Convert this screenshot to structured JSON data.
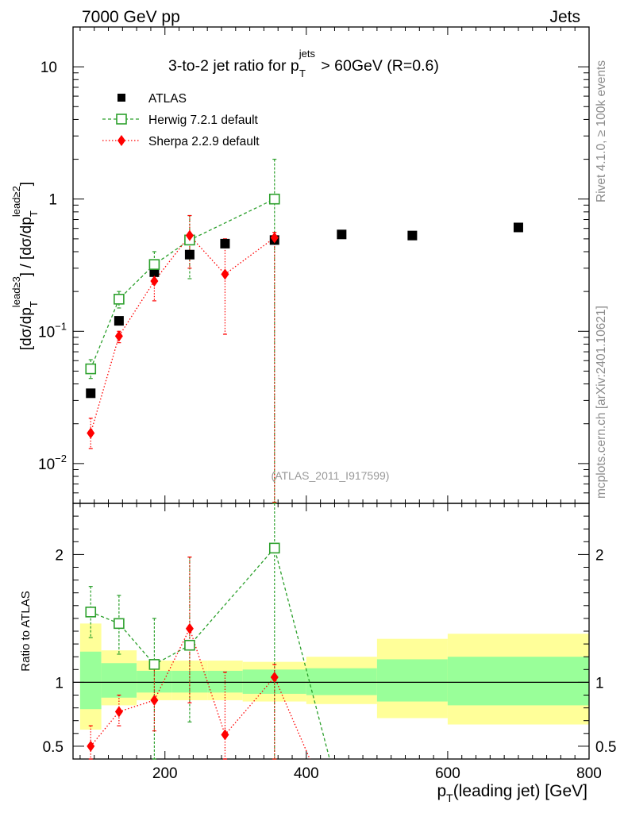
{
  "header": {
    "left": "7000 GeV pp",
    "right": "Jets",
    "side_top": "Rivet 4.1.0, ≥ 100k events",
    "side_bottom": "mcplots.cern.ch [arXiv:2401.10621]",
    "ref": "(ATLAS_2011_I917599)"
  },
  "main_title": {
    "prefix": "3-to-2 jet ratio for p",
    "sup": "jets",
    "sub": "T",
    "suffix": " > 60GeV (R=0.6)"
  },
  "axes": {
    "main_ylabel": "[dσ/dp_T^{lead≥3}] / [dσ/dp_T^{lead≥2}]",
    "main_ylabel_parts": [
      "[dσ/dp",
      "T",
      "lead≥3",
      "] / [dσ/dp",
      "T",
      "lead≥2",
      "]"
    ],
    "ratio_ylabel": "Ratio to ATLAS",
    "xlabel_main": "p",
    "xlabel_sub": "T",
    "xlabel_rest": "(leading jet) [GeV]",
    "xlim": [
      70,
      800
    ],
    "main_ylim": [
      0.005,
      20
    ],
    "ratio_ylim": [
      0.4,
      2.4
    ],
    "x_ticks": [
      200,
      400,
      600,
      800
    ],
    "x_tick_labels": [
      "200",
      "400",
      "600",
      "800"
    ],
    "main_y_ticks": [
      0.01,
      0.1,
      1,
      10
    ],
    "main_y_tick_labels": [
      {
        "base": "10",
        "exp": "−2"
      },
      {
        "base": "10",
        "exp": "−1"
      },
      {
        "base": "1",
        "exp": ""
      },
      {
        "base": "10",
        "exp": ""
      }
    ],
    "ratio_y_ticks": [
      0.5,
      1,
      2
    ],
    "ratio_y_tick_labels": [
      "0.5",
      "1",
      "2"
    ]
  },
  "legend": [
    {
      "label": "ATLAS",
      "color": "#000000",
      "marker": "filled-square"
    },
    {
      "label": "Herwig 7.2.1 default",
      "color": "#2ca02c",
      "marker": "open-square",
      "dash": "dashed"
    },
    {
      "label": "Sherpa 2.2.9 default",
      "color": "#ff0000",
      "marker": "filled-diamond",
      "dash": "dotted"
    }
  ],
  "chart_data": {
    "type": "scatter",
    "title": "3-to-2 jet ratio for pT^jets > 60GeV (R=0.6)",
    "xlabel": "pT(leading jet) [GeV]",
    "ylabel": "[dσ/dpT^lead≥3] / [dσ/dpT^lead≥2]",
    "yscale": "log",
    "bin_edges": [
      80,
      110,
      160,
      210,
      260,
      310,
      400,
      500,
      600,
      800
    ],
    "series": [
      {
        "name": "ATLAS",
        "color": "#000000",
        "x": [
          95,
          135,
          185,
          235,
          285,
          355,
          450,
          550,
          700
        ],
        "values": [
          0.034,
          0.12,
          0.28,
          0.38,
          0.46,
          0.49,
          0.54,
          0.53,
          0.61
        ]
      },
      {
        "name": "Herwig 7.2.1 default",
        "color": "#2ca02c",
        "x": [
          95,
          135,
          185,
          235,
          355
        ],
        "values": [
          0.052,
          0.175,
          0.32,
          0.49,
          1.0
        ],
        "err_up": [
          0.061,
          0.2,
          0.4,
          0.75,
          2.0
        ],
        "err_down": [
          0.044,
          0.15,
          0.25,
          0.25,
          0.0051
        ]
      },
      {
        "name": "Sherpa 2.2.9 default",
        "color": "#ff0000",
        "x": [
          95,
          135,
          185,
          235,
          285,
          355
        ],
        "values": [
          0.017,
          0.092,
          0.24,
          0.53,
          0.27,
          0.51
        ],
        "err_up": [
          0.022,
          0.1,
          0.3,
          0.75,
          0.5,
          0.56
        ],
        "err_down": [
          0.013,
          0.082,
          0.17,
          0.3,
          0.095,
          0.0051
        ]
      }
    ],
    "ratio": {
      "ylabel": "Ratio to ATLAS",
      "herwig": [
        1.55,
        1.46,
        1.14,
        1.29,
        2.05
      ],
      "herwig_err_up": [
        1.75,
        1.68,
        1.5,
        1.98,
        2.4
      ],
      "herwig_err_down": [
        1.35,
        1.22,
        0.4,
        0.69,
        0.4
      ],
      "sherpa": [
        0.5,
        0.77,
        0.86,
        1.42,
        0.59,
        1.04
      ],
      "sherpa_err_up": [
        0.66,
        0.9,
        1.12,
        1.98,
        1.08,
        1.14
      ],
      "sherpa_err_down": [
        0.4,
        0.66,
        0.62,
        0.84,
        0.4,
        0.4
      ],
      "herwig_tail": [
        {
          "x": 355,
          "y": 2.05
        },
        {
          "x": 433,
          "y": 0.4
        }
      ],
      "sherpa_tail": [
        {
          "x": 355,
          "y": 1.04
        },
        {
          "x": 405,
          "y": 0.4
        }
      ],
      "band_green": [
        [
          0.79,
          1.24
        ],
        [
          0.88,
          1.15
        ],
        [
          0.92,
          1.09
        ],
        [
          0.92,
          1.09
        ],
        [
          0.92,
          1.09
        ],
        [
          0.91,
          1.1
        ],
        [
          0.9,
          1.11
        ],
        [
          0.85,
          1.18
        ],
        [
          0.82,
          1.2
        ]
      ],
      "band_yellow": [
        [
          0.63,
          1.46
        ],
        [
          0.82,
          1.25
        ],
        [
          0.86,
          1.17
        ],
        [
          0.86,
          1.17
        ],
        [
          0.86,
          1.17
        ],
        [
          0.85,
          1.16
        ],
        [
          0.83,
          1.2
        ],
        [
          0.72,
          1.34
        ],
        [
          0.67,
          1.38
        ]
      ]
    }
  }
}
